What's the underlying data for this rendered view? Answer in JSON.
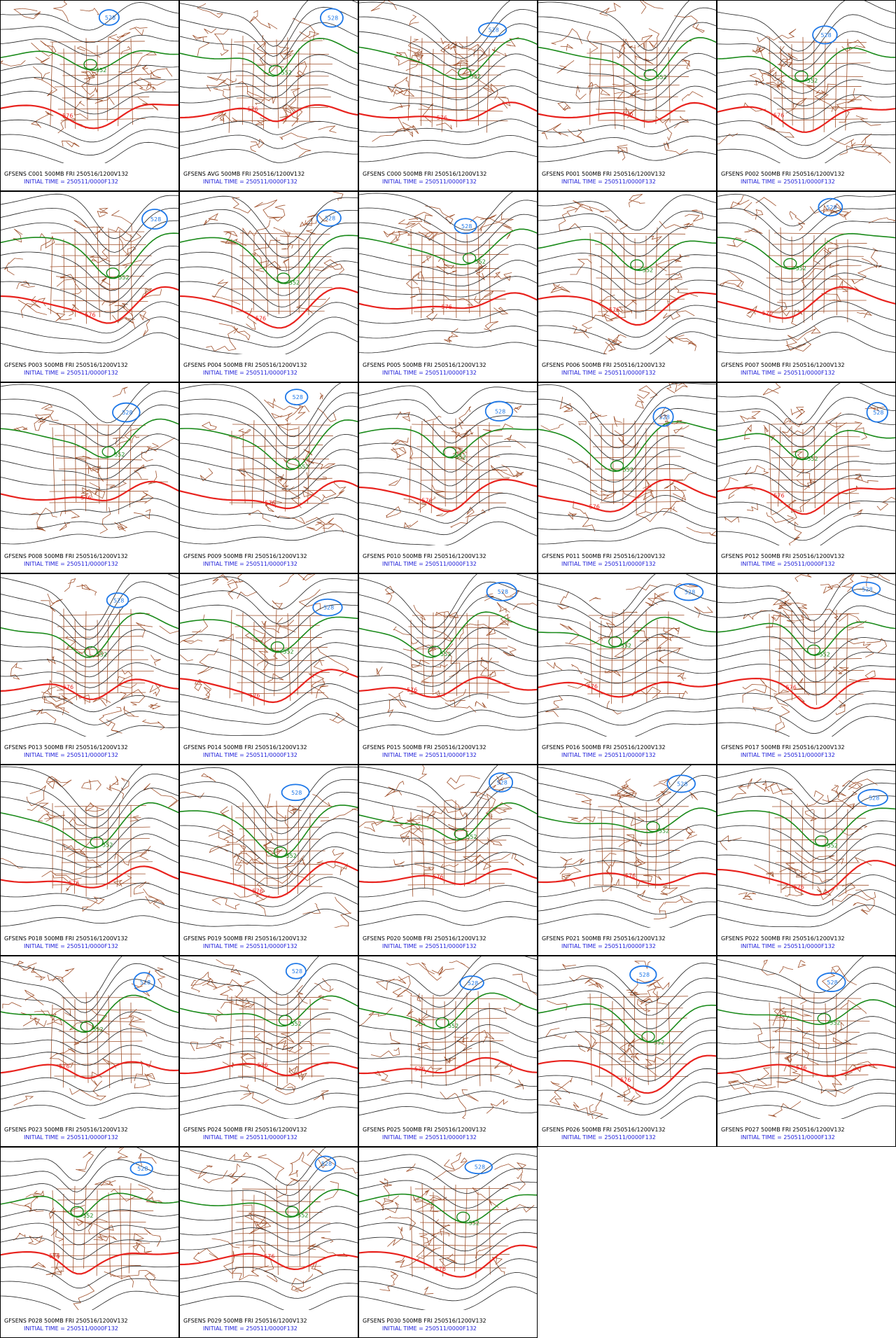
{
  "panels": [
    {
      "title": "GFSENS C001 500MB FRI 250516/1200V132",
      "init": "INITIAL TIME = 250511/0000F132",
      "contours": [
        "552",
        "576",
        "528"
      ]
    },
    {
      "title": "GFSENS AVG 500MB FRI 250516/1200V132",
      "init": "INITIAL TIME = 250511/0000F132",
      "contours": [
        "552",
        "576",
        "528"
      ]
    },
    {
      "title": "GFSENS C000 500MB FRI 250516/1200V132",
      "init": "INITIAL TIME = 250511/0000F132",
      "contours": [
        "552",
        "576",
        "528"
      ]
    },
    {
      "title": "GFSENS P001 500MB FRI 250516/1200V132",
      "init": "INITIAL TIME = 250511/0000F132",
      "contours": [
        "552",
        "576"
      ]
    },
    {
      "title": "GFSENS P002 500MB FRI 250516/1200V132",
      "init": "INITIAL TIME = 250511/0000F132",
      "contours": [
        "552",
        "576",
        "528"
      ]
    },
    {
      "title": "GFSENS P003 500MB FRI 250516/1200V132",
      "init": "INITIAL TIME = 250511/0000F132",
      "contours": [
        "552",
        "576",
        "528"
      ]
    },
    {
      "title": "GFSENS P004 500MB FRI 250516/1200V132",
      "init": "INITIAL TIME = 250511/0000F132",
      "contours": [
        "552",
        "576",
        "528"
      ]
    },
    {
      "title": "GFSENS P005 500MB FRI 250516/1200V132",
      "init": "INITIAL TIME = 250511/0000F132",
      "contours": [
        "552",
        "576",
        "528"
      ]
    },
    {
      "title": "GFSENS P006 500MB FRI 250516/1200V132",
      "init": "INITIAL TIME = 250511/0000F132",
      "contours": [
        "552",
        "576"
      ]
    },
    {
      "title": "GFSENS P007 500MB FRI 250516/1200V132",
      "init": "INITIAL TIME = 250511/0000F132",
      "contours": [
        "552",
        "576",
        "528"
      ]
    },
    {
      "title": "GFSENS P008 500MB FRI 250516/1200V132",
      "init": "INITIAL TIME = 250511/0000F132",
      "contours": [
        "552",
        "576",
        "528"
      ]
    },
    {
      "title": "GFSENS P009 500MB FRI 250516/1200V132",
      "init": "INITIAL TIME = 250511/0000F132",
      "contours": [
        "552",
        "576",
        "528"
      ]
    },
    {
      "title": "GFSENS P010 500MB FRI 250516/1200V132",
      "init": "INITIAL TIME = 250511/0000F132",
      "contours": [
        "552",
        "576",
        "528"
      ]
    },
    {
      "title": "GFSENS P011 500MB FRI 250516/1200V132",
      "init": "INITIAL TIME = 250511/0000F132",
      "contours": [
        "552",
        "576",
        "528"
      ]
    },
    {
      "title": "GFSENS P012 500MB FRI 250516/1200V132",
      "init": "INITIAL TIME = 250511/0000F132",
      "contours": [
        "552",
        "576",
        "528"
      ]
    },
    {
      "title": "GFSENS P013 500MB FRI 250516/1200V132",
      "init": "INITIAL TIME = 250511/0000F132",
      "contours": [
        "552",
        "576",
        "528"
      ]
    },
    {
      "title": "GFSENS P014 500MB FRI 250516/1200V132",
      "init": "INITIAL TIME = 250511/0000F132",
      "contours": [
        "552",
        "576",
        "528"
      ]
    },
    {
      "title": "GFSENS P015 500MB FRI 250516/1200V132",
      "init": "INITIAL TIME = 250511/0000F132",
      "contours": [
        "552",
        "576",
        "528"
      ]
    },
    {
      "title": "GFSENS P016 500MB FRI 250516/1200V132",
      "init": "INITIAL TIME = 250511/0000F132",
      "contours": [
        "552",
        "576",
        "528"
      ]
    },
    {
      "title": "GFSENS P017 500MB FRI 250516/1200V132",
      "init": "INITIAL TIME = 250511/0000F132",
      "contours": [
        "552",
        "576",
        "528"
      ]
    },
    {
      "title": "GFSENS P018 500MB FRI 250516/1200V132",
      "init": "INITIAL TIME = 250511/0000F132",
      "contours": [
        "552",
        "576"
      ]
    },
    {
      "title": "GFSENS P019 500MB FRI 250516/1200V132",
      "init": "INITIAL TIME = 250511/0000F132",
      "contours": [
        "552",
        "576",
        "528"
      ]
    },
    {
      "title": "GFSENS P020 500MB FRI 250516/1200V132",
      "init": "INITIAL TIME = 250511/0000F132",
      "contours": [
        "552",
        "576",
        "528"
      ]
    },
    {
      "title": "GFSENS P021 500MB FRI 250516/1200V132",
      "init": "INITIAL TIME = 250511/0000F132",
      "contours": [
        "552",
        "576",
        "528"
      ]
    },
    {
      "title": "GFSENS P022 500MB FRI 250516/1200V132",
      "init": "INITIAL TIME = 250511/0000F132",
      "contours": [
        "552",
        "576",
        "528"
      ]
    },
    {
      "title": "GFSENS P023 500MB FRI 250516/1200V132",
      "init": "INITIAL TIME = 250511/0000F132",
      "contours": [
        "552",
        "576",
        "528"
      ]
    },
    {
      "title": "GFSENS P024 500MB FRI 250516/1200V132",
      "init": "INITIAL TIME = 250511/0000F132",
      "contours": [
        "552",
        "576",
        "528"
      ]
    },
    {
      "title": "GFSENS P025 500MB FRI 250516/1200V132",
      "init": "INITIAL TIME = 250511/0000F132",
      "contours": [
        "552",
        "576",
        "528"
      ]
    },
    {
      "title": "GFSENS P026 500MB FRI 250516/1200V132",
      "init": "INITIAL TIME = 250511/0000F132",
      "contours": [
        "552",
        "576",
        "528"
      ]
    },
    {
      "title": "GFSENS P027 500MB FRI 250516/1200V132",
      "init": "INITIAL TIME = 250511/0000F132",
      "contours": [
        "552",
        "576",
        "528"
      ]
    },
    {
      "title": "GFSENS P028 500MB FRI 250516/1200V132",
      "init": "INITIAL TIME = 250511/0000F132",
      "contours": [
        "552",
        "576",
        "528"
      ]
    },
    {
      "title": "GFSENS P029 500MB FRI 250516/1200V132",
      "init": "INITIAL TIME = 250511/0000F132",
      "contours": [
        "552",
        "576",
        "528"
      ]
    },
    {
      "title": "GFSENS P030 500MB FRI 250516/1200V132",
      "init": "INITIAL TIME = 250511/0000F132",
      "contours": [
        "552",
        "576",
        "528"
      ]
    }
  ]
}
